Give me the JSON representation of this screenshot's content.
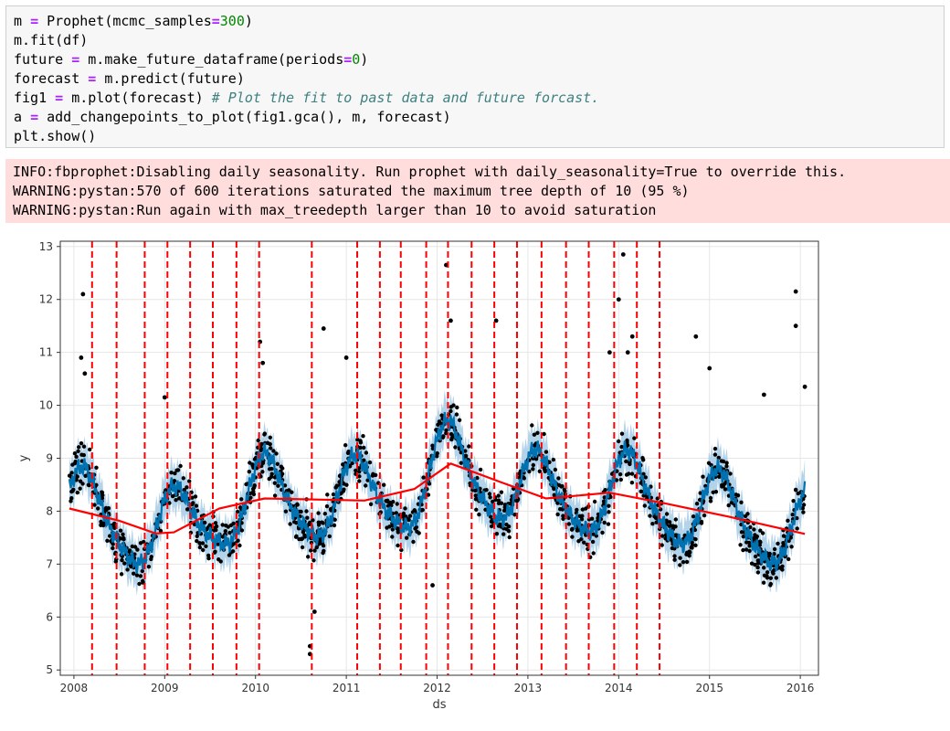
{
  "code_cell": {
    "lines": [
      [
        {
          "t": "m "
        },
        {
          "t": "=",
          "c": "op"
        },
        {
          "t": " Prophet(mcmc_samples"
        },
        {
          "t": "=",
          "c": "op"
        },
        {
          "t": "300",
          "c": "num"
        },
        {
          "t": ")"
        }
      ],
      [
        {
          "t": "m.fit(df)"
        }
      ],
      [
        {
          "t": "future "
        },
        {
          "t": "=",
          "c": "op"
        },
        {
          "t": " m.make_future_dataframe(periods"
        },
        {
          "t": "=",
          "c": "op"
        },
        {
          "t": "0",
          "c": "num"
        },
        {
          "t": ")"
        }
      ],
      [
        {
          "t": "forecast "
        },
        {
          "t": "=",
          "c": "op"
        },
        {
          "t": " m.predict(future)"
        }
      ],
      [
        {
          "t": "fig1 "
        },
        {
          "t": "=",
          "c": "op"
        },
        {
          "t": " m.plot(forecast) "
        },
        {
          "t": "# Plot the fit to past data and future forcast.",
          "c": "cm"
        }
      ],
      [
        {
          "t": "a "
        },
        {
          "t": "=",
          "c": "op"
        },
        {
          "t": " add_changepoints_to_plot(fig1.gca(), m, forecast)"
        }
      ],
      [
        {
          "t": "plt.show()"
        }
      ]
    ]
  },
  "stderr": {
    "lines": [
      "INFO:fbprophet:Disabling daily seasonality. Run prophet with daily_seasonality=True to override this.",
      "WARNING:pystan:570 of 600 iterations saturated the maximum tree depth of 10 (95 %)",
      "WARNING:pystan:Run again with max_treedepth larger than 10 to avoid saturation"
    ]
  },
  "chart_data": {
    "type": "line",
    "title": "",
    "xlabel": "ds",
    "ylabel": "y",
    "xlim": [
      2007.85,
      2016.2
    ],
    "ylim": [
      4.9,
      13.1
    ],
    "xticks": [
      2008,
      2009,
      2010,
      2011,
      2012,
      2013,
      2014,
      2015,
      2016
    ],
    "yticks": [
      5,
      6,
      7,
      8,
      9,
      10,
      11,
      12,
      13
    ],
    "grid": true,
    "colors": {
      "forecast": "#0072b2",
      "interval": "#a6cbe6",
      "points": "#000000",
      "trend": "#ff0000",
      "changepoints": "#ff0000"
    },
    "trend": [
      {
        "x": 2007.95,
        "y": 8.05
      },
      {
        "x": 2008.5,
        "y": 7.82
      },
      {
        "x": 2008.9,
        "y": 7.58
      },
      {
        "x": 2009.1,
        "y": 7.6
      },
      {
        "x": 2009.6,
        "y": 8.05
      },
      {
        "x": 2010.1,
        "y": 8.24
      },
      {
        "x": 2011.2,
        "y": 8.2
      },
      {
        "x": 2011.75,
        "y": 8.42
      },
      {
        "x": 2012.15,
        "y": 8.9
      },
      {
        "x": 2012.7,
        "y": 8.55
      },
      {
        "x": 2013.2,
        "y": 8.24
      },
      {
        "x": 2013.9,
        "y": 8.35
      },
      {
        "x": 2014.5,
        "y": 8.15
      },
      {
        "x": 2015.2,
        "y": 7.9
      },
      {
        "x": 2016.05,
        "y": 7.57
      }
    ],
    "changepoints": [
      2008.2,
      2008.47,
      2008.78,
      2009.03,
      2009.28,
      2009.53,
      2009.79,
      2010.04,
      2010.62,
      2011.12,
      2011.37,
      2011.6,
      2011.88,
      2012.12,
      2012.38,
      2012.63,
      2012.88,
      2013.15,
      2013.42,
      2013.67,
      2013.95,
      2014.2,
      2014.45
    ],
    "seasonal": {
      "amplitude": 0.75,
      "peak_month": 1.5
    },
    "interval_halfwidth": 0.42,
    "data_points": {
      "start": 2007.95,
      "end": 2016.05,
      "noise": 0.32
    },
    "outliers": [
      {
        "x": 2008.1,
        "y": 12.1
      },
      {
        "x": 2008.08,
        "y": 10.9
      },
      {
        "x": 2008.12,
        "y": 10.6
      },
      {
        "x": 2009.0,
        "y": 10.15
      },
      {
        "x": 2010.05,
        "y": 11.2
      },
      {
        "x": 2010.08,
        "y": 10.8
      },
      {
        "x": 2010.6,
        "y": 5.45
      },
      {
        "x": 2010.6,
        "y": 5.3
      },
      {
        "x": 2010.65,
        "y": 6.1
      },
      {
        "x": 2010.75,
        "y": 11.45
      },
      {
        "x": 2011.0,
        "y": 10.9
      },
      {
        "x": 2012.1,
        "y": 12.65
      },
      {
        "x": 2012.15,
        "y": 11.6
      },
      {
        "x": 2011.95,
        "y": 6.6
      },
      {
        "x": 2012.65,
        "y": 11.6
      },
      {
        "x": 2013.9,
        "y": 11.0
      },
      {
        "x": 2014.05,
        "y": 12.85
      },
      {
        "x": 2014.0,
        "y": 12.0
      },
      {
        "x": 2014.1,
        "y": 11.0
      },
      {
        "x": 2014.15,
        "y": 11.3
      },
      {
        "x": 2015.0,
        "y": 10.7
      },
      {
        "x": 2014.85,
        "y": 11.3
      },
      {
        "x": 2015.95,
        "y": 12.15
      },
      {
        "x": 2015.95,
        "y": 11.5
      },
      {
        "x": 2016.05,
        "y": 10.35
      },
      {
        "x": 2015.6,
        "y": 10.2
      }
    ]
  }
}
